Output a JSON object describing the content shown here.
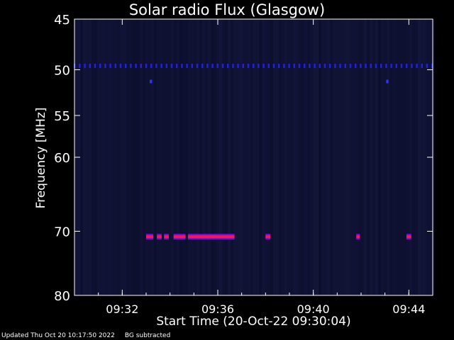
{
  "chart_data": {
    "type": "heatmap",
    "title": "Solar radio Flux (Glasgow)",
    "xlabel": "Start Time (20-Oct-22 09:30:04)",
    "ylabel": "Frequency [MHz]",
    "x_ticks": [
      {
        "label": "09:32",
        "minutes": 2
      },
      {
        "label": "09:36",
        "minutes": 6
      },
      {
        "label": "09:40",
        "minutes": 10
      },
      {
        "label": "09:44",
        "minutes": 14
      }
    ],
    "y_ticks": [
      45,
      50,
      55,
      60,
      70,
      80
    ],
    "xlim_minutes": [
      0.0,
      15.0
    ],
    "ylim_mhz": [
      45,
      80
    ],
    "y_scale": "log",
    "background_color": "#0a0c28",
    "series": [
      {
        "frequency_mhz": 49.6,
        "intensity": "medium",
        "color": "#2020e8",
        "pattern": "dotted",
        "segments": [
          [
            0.0,
            15.0
          ]
        ]
      },
      {
        "frequency_mhz": 51.2,
        "intensity": "medium",
        "color": "#3030ff",
        "pattern": "solid",
        "segments": [
          [
            3.15,
            3.25
          ],
          [
            13.05,
            13.15
          ]
        ]
      },
      {
        "frequency_mhz": 70.8,
        "intensity": "high",
        "color": "#ff1540",
        "edge_color": "#6a0dff",
        "pattern": "solid",
        "segments": [
          [
            3.0,
            3.3
          ],
          [
            3.45,
            3.65
          ],
          [
            3.75,
            3.95
          ],
          [
            4.15,
            4.65
          ],
          [
            4.75,
            6.7
          ],
          [
            8.0,
            8.2
          ],
          [
            11.8,
            11.95
          ],
          [
            13.9,
            14.1
          ]
        ]
      }
    ]
  },
  "footer": {
    "updated": "Updated Thu Oct 20 10:17:50 2022",
    "note": "BG subtracted"
  }
}
